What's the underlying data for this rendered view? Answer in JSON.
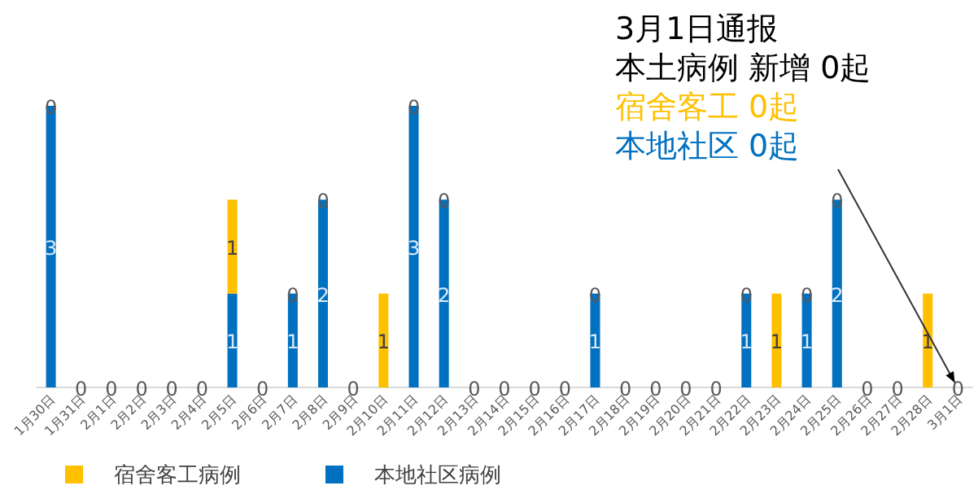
{
  "chart_data": {
    "type": "bar",
    "stacked": true,
    "legend": "bottom left",
    "grid": false,
    "categories": [
      "1月30日",
      "1月31日",
      "2月1日",
      "2月2日",
      "2月3日",
      "2月4日",
      "2月5日",
      "2月6日",
      "2月7日",
      "2月8日",
      "2月9日",
      "2月10日",
      "2月11日",
      "2月12日",
      "2月13日",
      "2月14日",
      "2月15日",
      "2月16日",
      "2月17日",
      "2月18日",
      "2月19日",
      "2月20日",
      "2月21日",
      "2月22日",
      "2月23日",
      "2月24日",
      "2月25日",
      "2月26日",
      "2月27日",
      "2月28日",
      "3月1日"
    ],
    "series": [
      {
        "name": "本地社区病例",
        "color": "#0070c0",
        "values": [
          3,
          0,
          0,
          0,
          0,
          0,
          1,
          0,
          1,
          2,
          0,
          0,
          3,
          2,
          0,
          0,
          0,
          0,
          1,
          0,
          0,
          0,
          0,
          1,
          0,
          1,
          2,
          0,
          0,
          0,
          0
        ],
        "value_labels": [
          "3",
          "0",
          "0",
          "0",
          "0",
          "0",
          "1",
          "0",
          "1",
          "2",
          "0",
          null,
          "3",
          "2",
          "0",
          "0",
          "0",
          "0",
          "1",
          "0",
          "0",
          "0",
          "0",
          "1",
          null,
          "1",
          "2",
          "0",
          "0",
          null,
          "0"
        ]
      },
      {
        "name": "宿舍客工病例",
        "color": "#ffc000",
        "values": [
          0,
          0,
          0,
          0,
          0,
          0,
          1,
          0,
          0,
          0,
          0,
          1,
          0,
          0,
          0,
          0,
          0,
          0,
          0,
          0,
          0,
          0,
          0,
          0,
          1,
          0,
          0,
          0,
          0,
          1,
          0
        ],
        "value_labels": [
          "0",
          null,
          null,
          null,
          null,
          null,
          "1",
          null,
          "0",
          "0",
          null,
          "1",
          "0",
          "0",
          null,
          null,
          null,
          null,
          "0",
          null,
          null,
          null,
          null,
          "0",
          "1",
          "0",
          "0",
          null,
          null,
          "1",
          null
        ]
      }
    ],
    "annotations": [
      "3月1日通报",
      "本土病例 新增 0起",
      "宿舍客工 0起",
      {
        "text": "本地社区 0起",
        "x": "3月1日",
        "y": 0
      }
    ]
  }
}
